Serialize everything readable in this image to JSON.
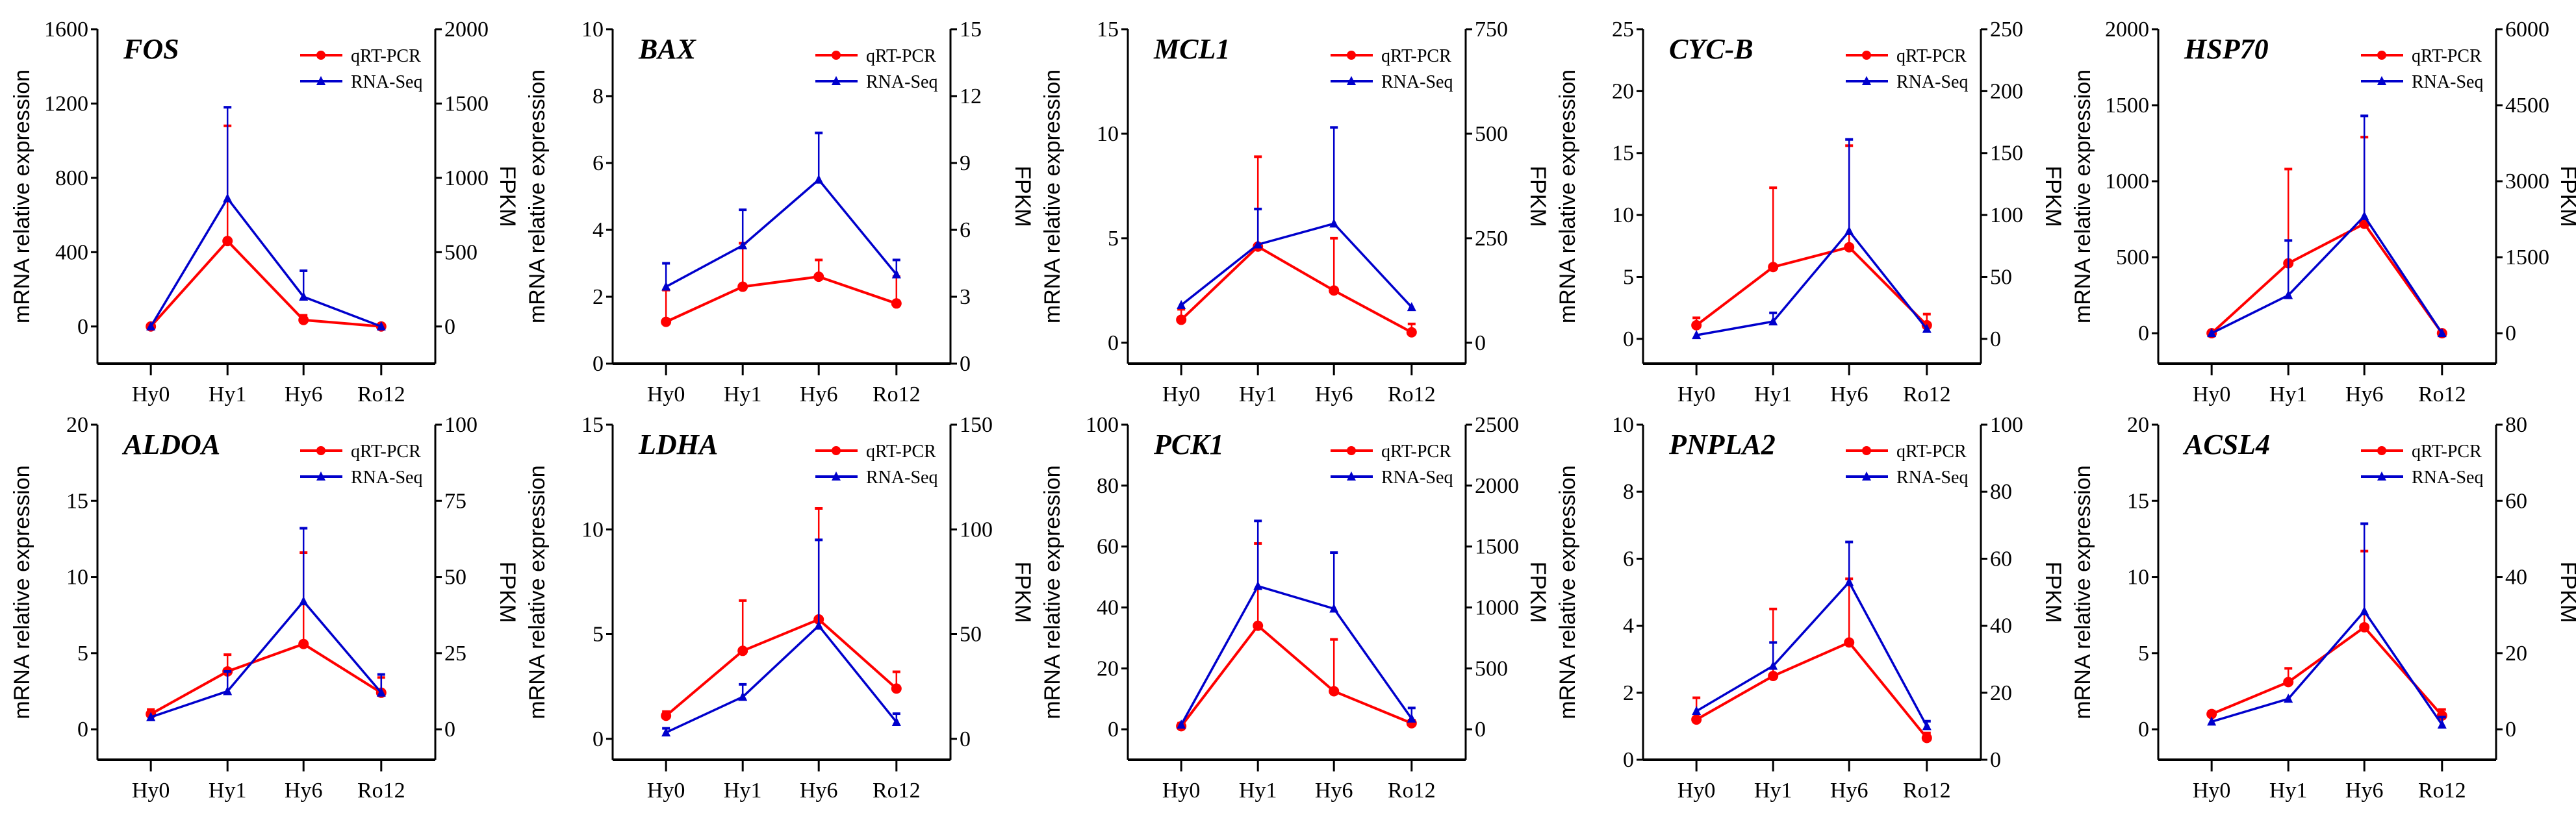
{
  "colors": {
    "qrt": "#ff0000",
    "rna": "#0000cc",
    "axis": "#000000"
  },
  "legend": {
    "qrt": "qRT-PCR",
    "rna": "RNA-Seq"
  },
  "chart_data": [
    {
      "type": "line",
      "title": "FOS",
      "ylabel": "mRNA relative expression",
      "y2label": "FPKM",
      "categories": [
        "Hy0",
        "Hy1",
        "Hy6",
        "Ro12"
      ],
      "ylim": [
        -200,
        1600
      ],
      "yticks": [
        0,
        400,
        800,
        1200,
        1600
      ],
      "y2lim": [
        -250,
        2000
      ],
      "y2ticks": [
        0,
        500,
        1000,
        1500,
        2000
      ],
      "series": [
        {
          "name": "qRT-PCR",
          "axis": "left",
          "values": [
            0,
            460,
            35,
            0
          ],
          "err_upper": [
            0,
            1080,
            60,
            0
          ]
        },
        {
          "name": "RNA-Seq",
          "axis": "right",
          "values": [
            0,
            862,
            200,
            0
          ],
          "err_upper": [
            0,
            1475,
            375,
            0
          ]
        }
      ]
    },
    {
      "type": "line",
      "title": "BAX",
      "ylabel": "mRNA relative expression",
      "y2label": "FPKM",
      "categories": [
        "Hy0",
        "Hy1",
        "Hy6",
        "Ro12"
      ],
      "ylim": [
        0,
        10
      ],
      "yticks": [
        0,
        2,
        4,
        6,
        8,
        10
      ],
      "y2lim": [
        0,
        15
      ],
      "y2ticks": [
        0,
        3,
        6,
        9,
        12,
        15
      ],
      "series": [
        {
          "name": "qRT-PCR",
          "axis": "left",
          "values": [
            1.25,
            2.3,
            2.6,
            1.8
          ],
          "err_upper": [
            2.2,
            3.6,
            3.1,
            2.6
          ]
        },
        {
          "name": "RNA-Seq",
          "axis": "right",
          "values": [
            3.45,
            5.3,
            8.25,
            4.0
          ],
          "err_upper": [
            4.5,
            6.9,
            10.35,
            4.65
          ]
        }
      ]
    },
    {
      "type": "line",
      "title": "MCL1",
      "ylabel": "mRNA relative expression",
      "y2label": "FPKM",
      "categories": [
        "Hy0",
        "Hy1",
        "Hy6",
        "Ro12"
      ],
      "ylim": [
        -1,
        15
      ],
      "yticks": [
        0,
        5,
        10,
        15
      ],
      "y2lim": [
        -50,
        750
      ],
      "y2ticks": [
        0,
        250,
        500,
        750
      ],
      "series": [
        {
          "name": "qRT-PCR",
          "axis": "left",
          "values": [
            1.1,
            4.6,
            2.5,
            0.5
          ],
          "err_upper": [
            1.6,
            8.9,
            5.0,
            0.9
          ]
        },
        {
          "name": "RNA-Seq",
          "axis": "right",
          "values": [
            90,
            235,
            285,
            85
          ],
          "err_upper": [
            90,
            320,
            515,
            85
          ]
        }
      ]
    },
    {
      "type": "line",
      "title": "CYC-B",
      "ylabel": "mRNA relative expression",
      "y2label": "FPKM",
      "categories": [
        "Hy0",
        "Hy1",
        "Hy6",
        "Ro12"
      ],
      "ylim": [
        -2,
        25
      ],
      "yticks": [
        0,
        5,
        10,
        15,
        20,
        25
      ],
      "y2lim": [
        -20,
        250
      ],
      "y2ticks": [
        0,
        50,
        100,
        150,
        200,
        250
      ],
      "series": [
        {
          "name": "qRT-PCR",
          "axis": "left",
          "values": [
            1.1,
            5.8,
            7.4,
            1.1
          ],
          "err_upper": [
            1.7,
            12.2,
            15.6,
            2.0
          ]
        },
        {
          "name": "RNA-Seq",
          "axis": "right",
          "values": [
            3,
            14,
            87,
            8
          ],
          "err_upper": [
            3,
            21,
            161,
            8
          ]
        }
      ]
    },
    {
      "type": "line",
      "title": "HSP70",
      "ylabel": "mRNA relative expression",
      "y2label": "FPKM",
      "categories": [
        "Hy0",
        "Hy1",
        "Hy6",
        "Ro12"
      ],
      "ylim": [
        -200,
        2000
      ],
      "yticks": [
        0,
        500,
        1000,
        1500,
        2000
      ],
      "y2lim": [
        -600,
        6000
      ],
      "y2ticks": [
        0,
        1500,
        3000,
        4500,
        6000
      ],
      "series": [
        {
          "name": "qRT-PCR",
          "axis": "left",
          "values": [
            0,
            460,
            720,
            0
          ],
          "err_upper": [
            0,
            1080,
            1290,
            0
          ]
        },
        {
          "name": "RNA-Seq",
          "axis": "right",
          "values": [
            0,
            750,
            2310,
            0
          ],
          "err_upper": [
            0,
            1830,
            4290,
            0
          ]
        }
      ]
    },
    {
      "type": "line",
      "title": "ALDOA",
      "ylabel": "mRNA relative expression",
      "y2label": "FPKM",
      "categories": [
        "Hy0",
        "Hy1",
        "Hy6",
        "Ro12"
      ],
      "ylim": [
        -2,
        20
      ],
      "yticks": [
        0,
        5,
        10,
        15,
        20
      ],
      "y2lim": [
        -10,
        100
      ],
      "y2ticks": [
        0,
        25,
        50,
        75,
        100
      ],
      "series": [
        {
          "name": "qRT-PCR",
          "axis": "left",
          "values": [
            1.0,
            3.8,
            5.6,
            2.4
          ],
          "err_upper": [
            1.3,
            4.9,
            11.6,
            3.4
          ]
        },
        {
          "name": "RNA-Seq",
          "axis": "right",
          "values": [
            4,
            12.5,
            42,
            12
          ],
          "err_upper": [
            4,
            19,
            66,
            18
          ]
        }
      ]
    },
    {
      "type": "line",
      "title": "LDHA",
      "ylabel": "mRNA relative expression",
      "y2label": "FPKM",
      "categories": [
        "Hy0",
        "Hy1",
        "Hy6",
        "Ro12"
      ],
      "ylim": [
        -1,
        15
      ],
      "yticks": [
        0,
        5,
        10,
        15
      ],
      "y2lim": [
        -10,
        150
      ],
      "y2ticks": [
        0,
        50,
        100,
        150
      ],
      "series": [
        {
          "name": "qRT-PCR",
          "axis": "left",
          "values": [
            1.1,
            4.2,
            5.7,
            2.4
          ],
          "err_upper": [
            1.3,
            6.6,
            11.0,
            3.2
          ]
        },
        {
          "name": "RNA-Seq",
          "axis": "right",
          "values": [
            3,
            20,
            54,
            8
          ],
          "err_upper": [
            5,
            26,
            95,
            12
          ]
        }
      ]
    },
    {
      "type": "line",
      "title": "PCK1",
      "ylabel": "mRNA relative expression",
      "y2label": "FPKM",
      "categories": [
        "Hy0",
        "Hy1",
        "Hy6",
        "Ro12"
      ],
      "ylim": [
        -10,
        100
      ],
      "yticks": [
        0,
        20,
        40,
        60,
        80,
        100
      ],
      "y2lim": [
        -250,
        2500
      ],
      "y2ticks": [
        0,
        500,
        1000,
        1500,
        2000,
        2500
      ],
      "series": [
        {
          "name": "qRT-PCR",
          "axis": "left",
          "values": [
            1,
            34,
            12.5,
            2
          ],
          "err_upper": [
            2,
            61,
            29.5,
            3
          ]
        },
        {
          "name": "RNA-Seq",
          "axis": "right",
          "values": [
            37,
            1175,
            990,
            87
          ],
          "err_upper": [
            37,
            1710,
            1450,
            175
          ]
        }
      ]
    },
    {
      "type": "line",
      "title": "PNPLA2",
      "ylabel": "mRNA relative expression",
      "y2label": "FPKM",
      "categories": [
        "Hy0",
        "Hy1",
        "Hy6",
        "Ro12"
      ],
      "ylim": [
        0,
        10
      ],
      "yticks": [
        0,
        2,
        4,
        6,
        8,
        10
      ],
      "y2lim": [
        0,
        100
      ],
      "y2ticks": [
        0,
        20,
        40,
        60,
        80,
        100
      ],
      "series": [
        {
          "name": "qRT-PCR",
          "axis": "left",
          "values": [
            1.2,
            2.5,
            3.5,
            0.65
          ],
          "err_upper": [
            1.85,
            4.5,
            5.4,
            0.8
          ]
        },
        {
          "name": "RNA-Seq",
          "axis": "right",
          "values": [
            14.5,
            28,
            53,
            10
          ],
          "err_upper": [
            14.5,
            35,
            65,
            11.5
          ]
        }
      ]
    },
    {
      "type": "line",
      "title": "ACSL4",
      "ylabel": "mRNA relative expression",
      "y2label": "FPKM",
      "categories": [
        "Hy0",
        "Hy1",
        "Hy6",
        "Ro12"
      ],
      "ylim": [
        -2,
        20
      ],
      "yticks": [
        0,
        5,
        10,
        15,
        20
      ],
      "y2lim": [
        -8,
        80
      ],
      "y2ticks": [
        0,
        20,
        40,
        60,
        80
      ],
      "series": [
        {
          "name": "qRT-PCR",
          "axis": "left",
          "values": [
            1.0,
            3.1,
            6.7,
            0.9
          ],
          "err_upper": [
            1.2,
            4.0,
            11.7,
            1.3
          ]
        },
        {
          "name": "RNA-Seq",
          "axis": "right",
          "values": [
            2,
            8,
            31,
            1.2
          ],
          "err_upper": [
            2,
            8,
            54,
            3.2
          ]
        }
      ]
    }
  ]
}
